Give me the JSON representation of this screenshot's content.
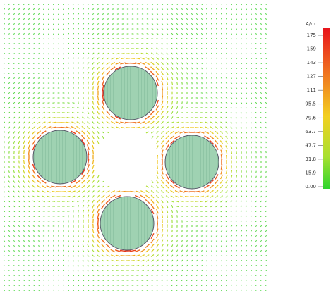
{
  "colorbar": {
    "title": "A/m",
    "labels": [
      "175",
      "159",
      "143",
      "127",
      "111",
      "95.5",
      "79.6",
      "63.7",
      "47.7",
      "31.8",
      "15.9",
      "0.00"
    ]
  }
}
